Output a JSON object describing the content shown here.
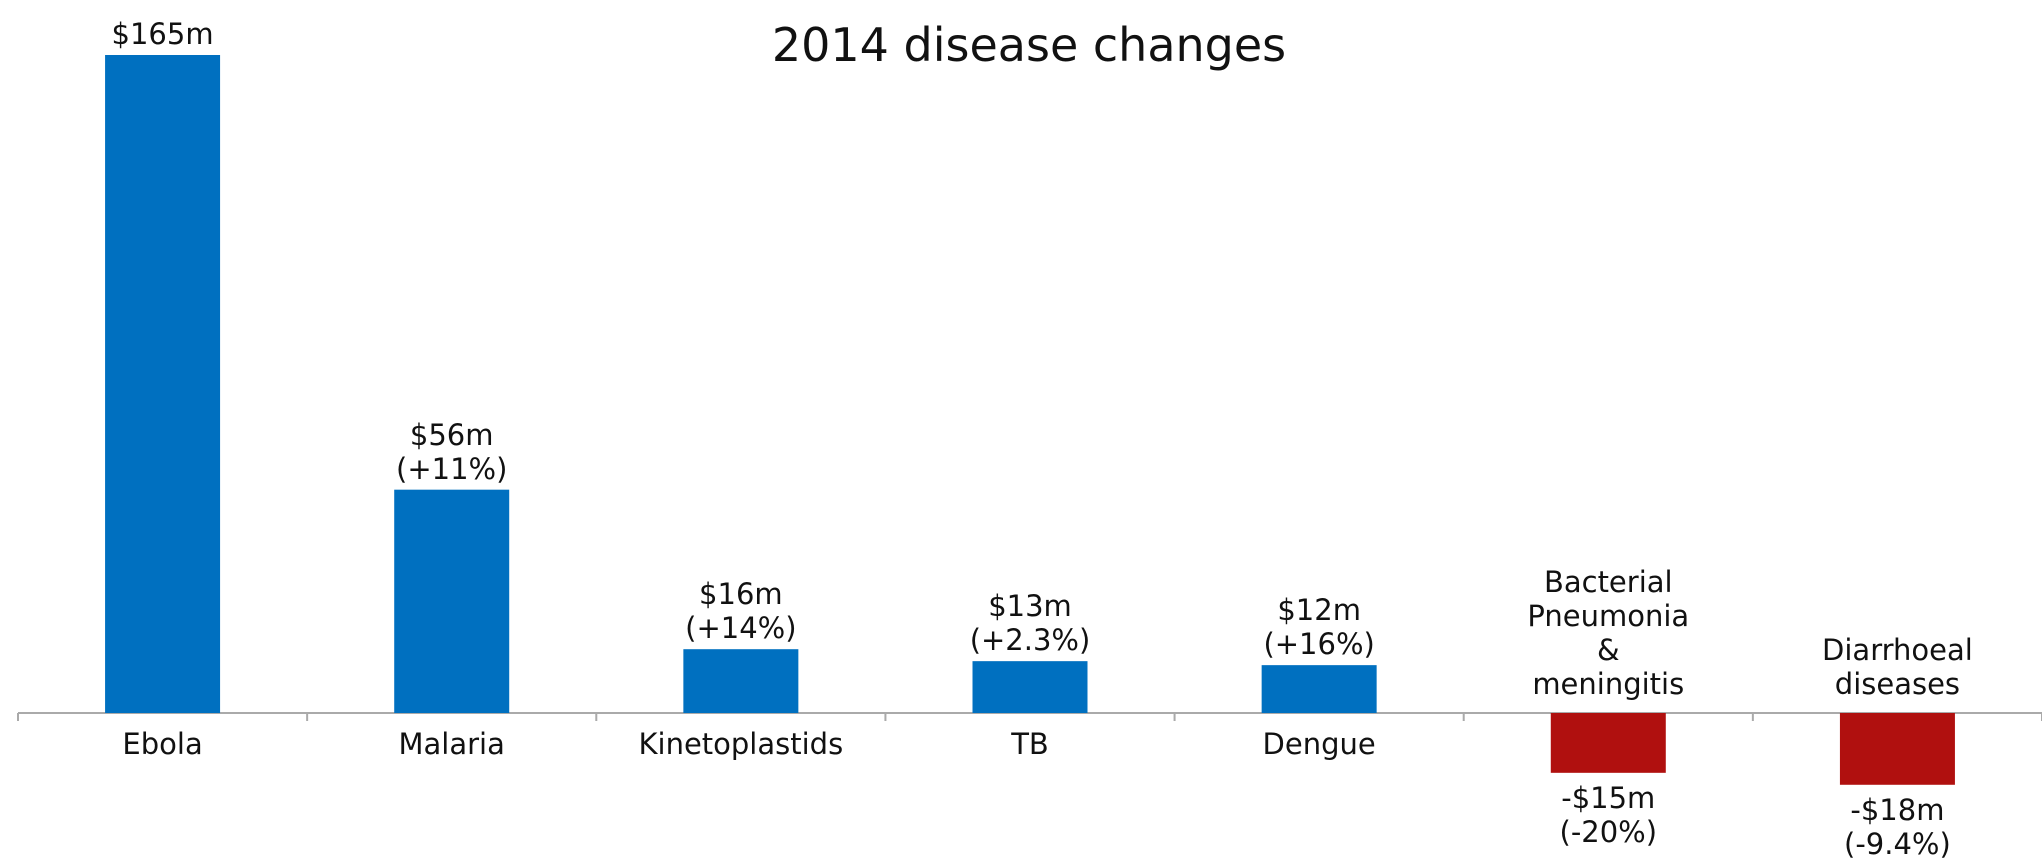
{
  "chart_data": {
    "type": "bar",
    "title": "2014 disease changes",
    "categories": [
      "Ebola",
      "Malaria",
      "Kinetoplastids",
      "TB",
      "Dengue",
      "Bacterial\nPneumonia\n&\nmeningitis",
      "Diarrhoeal\ndiseases"
    ],
    "values": [
      165,
      56,
      16,
      13,
      12,
      -15,
      -18
    ],
    "value_labels": [
      "$165m",
      "$56m\n(+11%)",
      "$16m\n(+14%)",
      "$13m\n(+2.3%)",
      "$12m\n(+16%)",
      "-$15m\n(-20%)",
      "-$18m\n(-9.4%)"
    ],
    "color": "#0070c0",
    "negative_color": "#b0100f"
  }
}
